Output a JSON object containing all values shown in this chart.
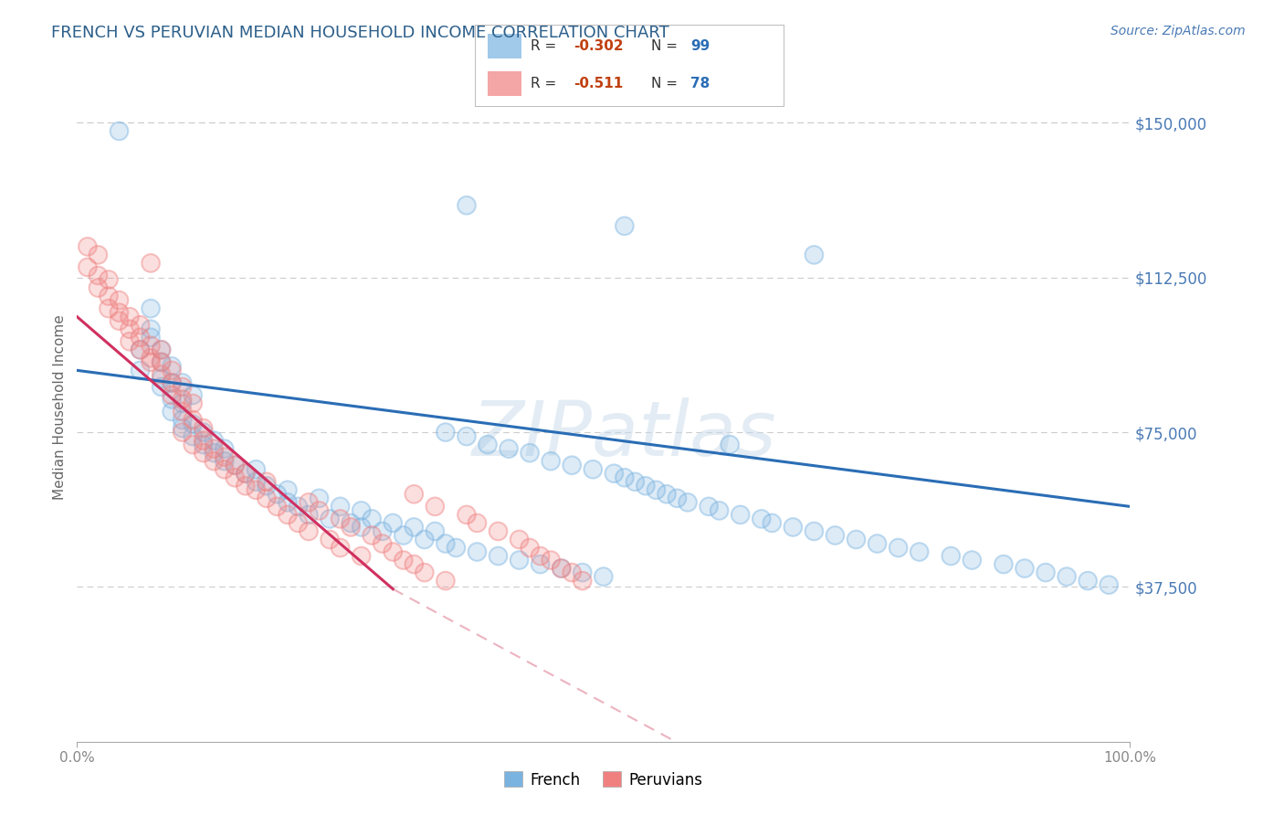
{
  "title": "FRENCH VS PERUVIAN MEDIAN HOUSEHOLD INCOME CORRELATION CHART",
  "source_text": "Source: ZipAtlas.com",
  "ylabel": "Median Household Income",
  "watermark": "ZIPatlas",
  "ytick_labels": [
    "$150,000",
    "$112,500",
    "$75,000",
    "$37,500"
  ],
  "ytick_values": [
    150000,
    112500,
    75000,
    37500
  ],
  "xtick_labels": [
    "0.0%",
    "100.0%"
  ],
  "xlim": [
    0,
    1
  ],
  "ylim": [
    0,
    162000
  ],
  "title_color": "#2c5f8a",
  "source_color": "#4a7ab5",
  "ytick_color": "#4a7ab5",
  "xtick_color": "#888888",
  "ylabel_color": "#666666",
  "french_color": "#7ab3e0",
  "peruvian_color": "#f08080",
  "french_line_color": "#2a6db5",
  "peruvian_line_color": "#d03060",
  "peruvian_dashed_color": "#e8a0b0",
  "grid_color": "#cccccc",
  "background_color": "#ffffff",
  "french_trendline": {
    "x": [
      0.0,
      1.0
    ],
    "y": [
      90000,
      57000
    ]
  },
  "peruvian_trendline_solid": {
    "x": [
      0.0,
      0.3
    ],
    "y": [
      103000,
      37000
    ]
  },
  "peruvian_trendline_dashed": {
    "x": [
      0.3,
      0.75
    ],
    "y": [
      37000,
      -25000
    ]
  },
  "french_scatter_x": [
    0.04,
    0.37,
    0.52,
    0.7,
    0.06,
    0.06,
    0.07,
    0.07,
    0.08,
    0.08,
    0.08,
    0.09,
    0.09,
    0.09,
    0.1,
    0.1,
    0.1,
    0.11,
    0.11,
    0.12,
    0.12,
    0.13,
    0.13,
    0.14,
    0.14,
    0.15,
    0.16,
    0.17,
    0.17,
    0.18,
    0.19,
    0.2,
    0.2,
    0.21,
    0.22,
    0.23,
    0.24,
    0.25,
    0.26,
    0.27,
    0.27,
    0.28,
    0.29,
    0.3,
    0.31,
    0.32,
    0.33,
    0.34,
    0.35,
    0.35,
    0.36,
    0.37,
    0.38,
    0.39,
    0.4,
    0.41,
    0.42,
    0.43,
    0.44,
    0.45,
    0.46,
    0.47,
    0.48,
    0.49,
    0.5,
    0.51,
    0.52,
    0.53,
    0.54,
    0.55,
    0.56,
    0.57,
    0.58,
    0.6,
    0.61,
    0.62,
    0.63,
    0.65,
    0.66,
    0.68,
    0.7,
    0.72,
    0.74,
    0.76,
    0.78,
    0.8,
    0.83,
    0.85,
    0.88,
    0.9,
    0.92,
    0.94,
    0.96,
    0.98,
    0.07,
    0.08,
    0.09,
    0.1,
    0.11
  ],
  "french_scatter_y": [
    148000,
    130000,
    125000,
    118000,
    95000,
    90000,
    105000,
    98000,
    88000,
    92000,
    86000,
    83000,
    87000,
    80000,
    78000,
    82000,
    76000,
    74000,
    77000,
    72000,
    75000,
    70000,
    73000,
    68000,
    71000,
    67000,
    65000,
    63000,
    66000,
    62000,
    60000,
    58000,
    61000,
    57000,
    55000,
    59000,
    54000,
    57000,
    53000,
    56000,
    52000,
    54000,
    51000,
    53000,
    50000,
    52000,
    49000,
    51000,
    48000,
    75000,
    47000,
    74000,
    46000,
    72000,
    45000,
    71000,
    44000,
    70000,
    43000,
    68000,
    42000,
    67000,
    41000,
    66000,
    40000,
    65000,
    64000,
    63000,
    62000,
    61000,
    60000,
    59000,
    58000,
    57000,
    56000,
    72000,
    55000,
    54000,
    53000,
    52000,
    51000,
    50000,
    49000,
    48000,
    47000,
    46000,
    45000,
    44000,
    43000,
    42000,
    41000,
    40000,
    39000,
    38000,
    100000,
    95000,
    91000,
    87000,
    84000
  ],
  "peruvian_scatter_x": [
    0.01,
    0.01,
    0.02,
    0.02,
    0.02,
    0.03,
    0.03,
    0.03,
    0.04,
    0.04,
    0.04,
    0.05,
    0.05,
    0.05,
    0.06,
    0.06,
    0.06,
    0.07,
    0.07,
    0.07,
    0.07,
    0.08,
    0.08,
    0.08,
    0.09,
    0.09,
    0.09,
    0.1,
    0.1,
    0.1,
    0.1,
    0.11,
    0.11,
    0.11,
    0.12,
    0.12,
    0.12,
    0.13,
    0.13,
    0.14,
    0.14,
    0.15,
    0.15,
    0.16,
    0.16,
    0.17,
    0.18,
    0.18,
    0.19,
    0.2,
    0.21,
    0.22,
    0.22,
    0.23,
    0.24,
    0.25,
    0.25,
    0.26,
    0.27,
    0.28,
    0.29,
    0.3,
    0.31,
    0.32,
    0.32,
    0.33,
    0.34,
    0.35,
    0.37,
    0.38,
    0.4,
    0.42,
    0.43,
    0.44,
    0.45,
    0.46,
    0.47,
    0.48
  ],
  "peruvian_scatter_y": [
    120000,
    115000,
    118000,
    110000,
    113000,
    108000,
    112000,
    105000,
    102000,
    107000,
    104000,
    100000,
    103000,
    97000,
    95000,
    98000,
    101000,
    92000,
    96000,
    93000,
    116000,
    89000,
    92000,
    95000,
    87000,
    90000,
    84000,
    83000,
    86000,
    80000,
    75000,
    78000,
    82000,
    72000,
    76000,
    70000,
    73000,
    68000,
    71000,
    66000,
    69000,
    64000,
    67000,
    62000,
    65000,
    61000,
    63000,
    59000,
    57000,
    55000,
    53000,
    58000,
    51000,
    56000,
    49000,
    54000,
    47000,
    52000,
    45000,
    50000,
    48000,
    46000,
    44000,
    43000,
    60000,
    41000,
    57000,
    39000,
    55000,
    53000,
    51000,
    49000,
    47000,
    45000,
    44000,
    42000,
    41000,
    39000
  ]
}
